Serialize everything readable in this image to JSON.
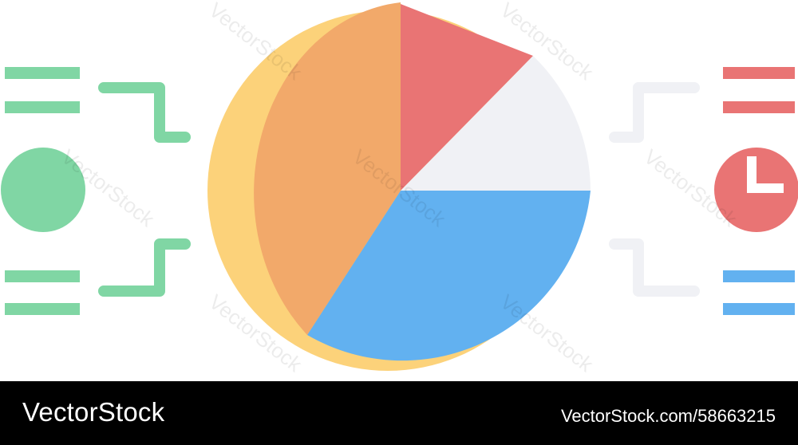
{
  "colors": {
    "green": "#80D6A4",
    "red": "#E97474",
    "light_gray": "#F0F1F5",
    "blue": "#62B1F0",
    "orange": "#F2A96A",
    "yellow": "#FCD27A"
  },
  "icons": {
    "left_circle": "green-circle-icon",
    "right_circle": "clock-icon"
  },
  "watermark": "VectorStock",
  "footer": {
    "brand": "VectorStock",
    "id": "VectorStock.com/58663215"
  }
}
